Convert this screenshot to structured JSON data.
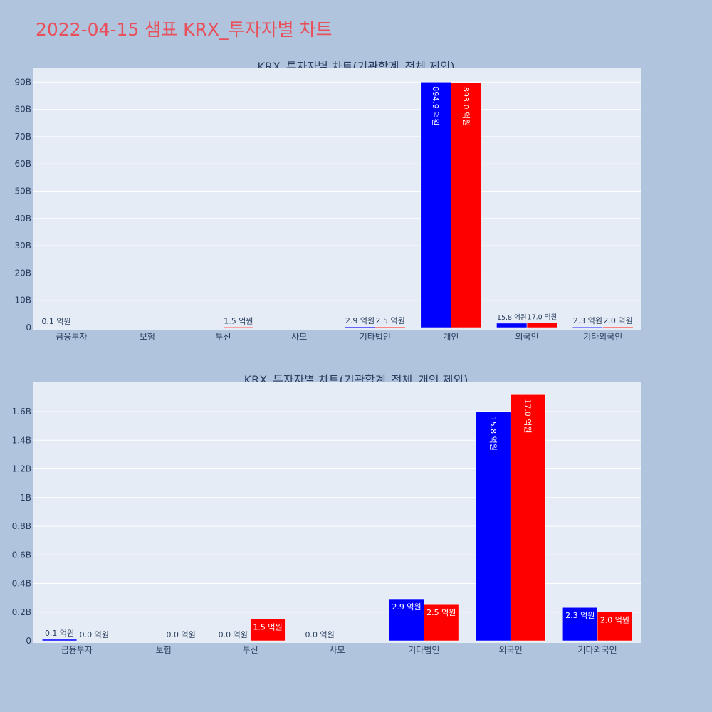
{
  "page_title": "2022-04-15 샘표 KRX_투자자별 차트",
  "colors": {
    "background": "#b0c4de",
    "plot_bg": "#e5ecf6",
    "title": "#e8505b",
    "buy": "#0000ff",
    "sell": "#ff0000"
  },
  "chart_data": [
    {
      "type": "bar",
      "title": "KRX_투자자별 차트(기관합계_전체 제외)",
      "categories": [
        "금융투자",
        "보험",
        "투신",
        "사모",
        "기타법인",
        "개인",
        "외국인",
        "기타외국인"
      ],
      "series": [
        {
          "values": [
            10000000,
            0,
            0,
            0,
            290000000,
            89490000000,
            1580000000,
            230000000
          ],
          "labels": [
            "0.1 억원",
            "",
            "",
            "",
            "2.9 억원",
            "894.9 억원",
            "15.8 억원",
            "2.3 억원"
          ]
        },
        {
          "values": [
            0,
            0,
            150000000,
            0,
            250000000,
            89300000000,
            1700000000,
            200000000
          ],
          "labels": [
            "",
            "",
            "1.5 억원",
            "",
            "2.5 억원",
            "893.0 억원",
            "17.0 억원",
            "2.0 억원"
          ]
        }
      ],
      "yticks": [
        "0",
        "10B",
        "20B",
        "30B",
        "40B",
        "50B",
        "60B",
        "70B",
        "80B",
        "90B"
      ],
      "ylim": [
        0,
        94500000000
      ]
    },
    {
      "type": "bar",
      "title": "KRX_투자자별 차트(기관합계_전체_개인 제외)",
      "categories": [
        "금융투자",
        "보험",
        "투신",
        "사모",
        "기타법인",
        "외국인",
        "기타외국인"
      ],
      "series": [
        {
          "values": [
            10000000,
            0,
            0,
            0,
            290000000,
            1580000000,
            230000000
          ],
          "labels": [
            "0.1 억원",
            "",
            "0.0 억원",
            "0.0 억원",
            "2.9 억원",
            "15.8 억원",
            "2.3 억원"
          ]
        },
        {
          "values": [
            0,
            0,
            150000000,
            0,
            250000000,
            1700000000,
            200000000
          ],
          "labels": [
            "0.0 억원",
            "0.0 억원",
            "1.5 억원",
            "",
            "2.5 억원",
            "17.0 억원",
            "2.0 억원"
          ]
        }
      ],
      "yticks": [
        "0",
        "0.2B",
        "0.4B",
        "0.6B",
        "0.8B",
        "1B",
        "1.2B",
        "1.4B",
        "1.6B"
      ],
      "ylim": [
        0,
        1790000000
      ]
    }
  ]
}
